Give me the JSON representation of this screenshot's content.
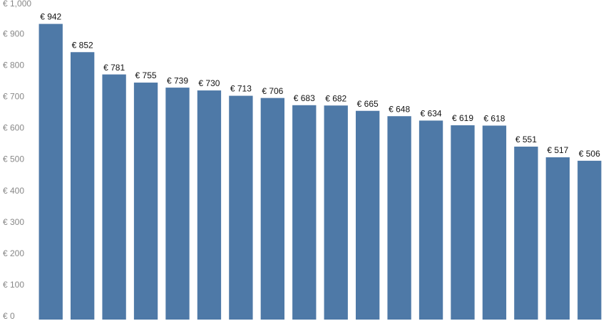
{
  "chart_data": {
    "type": "bar",
    "categories": [
      null,
      null,
      null,
      null,
      null,
      null,
      null,
      null,
      null,
      null,
      null,
      null,
      null,
      null,
      null,
      null,
      null,
      null
    ],
    "values": [
      942,
      852,
      781,
      755,
      739,
      730,
      713,
      706,
      683,
      682,
      665,
      648,
      634,
      619,
      618,
      551,
      517,
      506
    ],
    "value_labels": [
      "€ 942",
      "€ 852",
      "€ 781",
      "€ 755",
      "€ 739",
      "€ 730",
      "€ 713",
      "€ 706",
      "€ 683",
      "€ 682",
      "€ 665",
      "€ 648",
      "€ 634",
      "€ 619",
      "€ 618",
      "€ 551",
      "€ 517",
      "€ 506"
    ],
    "color": "#4e79a7",
    "ylim": [
      0,
      1000
    ],
    "yticks": [
      {
        "value": 0,
        "label": "€ 0"
      },
      {
        "value": 100,
        "label": "€ 100"
      },
      {
        "value": 200,
        "label": "€ 200"
      },
      {
        "value": 300,
        "label": "€ 300"
      },
      {
        "value": 400,
        "label": "€ 400"
      },
      {
        "value": 500,
        "label": "€ 500"
      },
      {
        "value": 600,
        "label": "€ 600"
      },
      {
        "value": 700,
        "label": "€ 700"
      },
      {
        "value": 800,
        "label": "€ 800"
      },
      {
        "value": 900,
        "label": "€ 900"
      },
      {
        "value": 1000,
        "label": "€ 1,000"
      }
    ],
    "grid": false
  }
}
